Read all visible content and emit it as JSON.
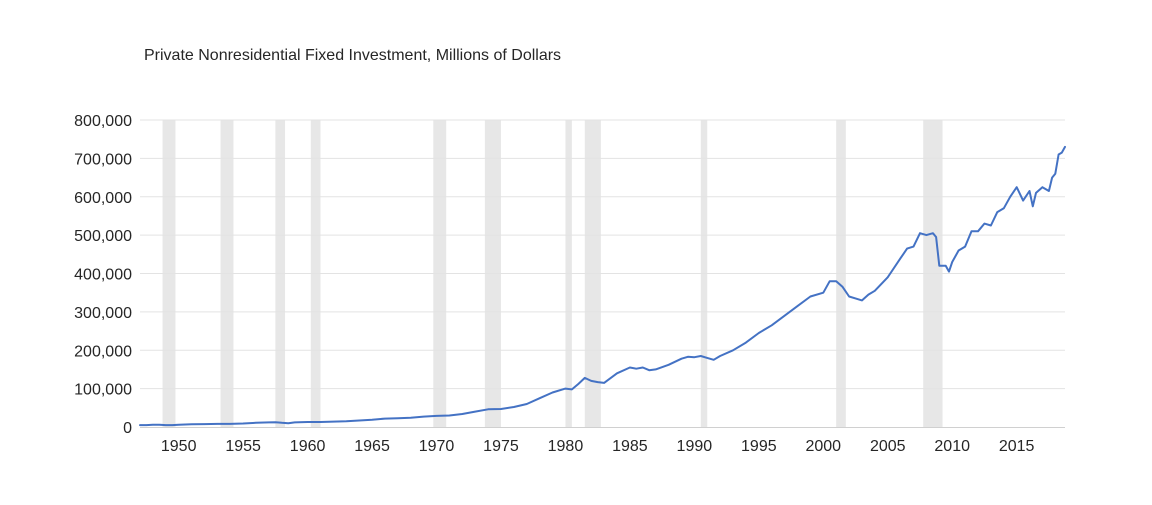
{
  "chart_data": {
    "type": "line",
    "title": "Private Nonresidential Fixed Investment, Millions of Dollars",
    "xlabel": "",
    "ylabel": "",
    "xlim": [
      1947,
      2018.75
    ],
    "ylim": [
      0,
      800000
    ],
    "y_ticks": [
      0,
      100000,
      200000,
      300000,
      400000,
      500000,
      600000,
      700000,
      800000
    ],
    "y_tick_labels": [
      "0",
      "100,000",
      "200,000",
      "300,000",
      "400,000",
      "500,000",
      "600,000",
      "700,000",
      "800,000"
    ],
    "x_ticks": [
      1950,
      1955,
      1960,
      1965,
      1970,
      1975,
      1980,
      1985,
      1990,
      1995,
      2000,
      2005,
      2010,
      2015
    ],
    "x_tick_labels": [
      "1950",
      "1955",
      "1960",
      "1965",
      "1970",
      "1975",
      "1980",
      "1985",
      "1990",
      "1995",
      "2000",
      "2005",
      "2010",
      "2015"
    ],
    "grid": true,
    "series_color": "#4472c4",
    "recession_color": "#e7e7e7",
    "recessions": [
      [
        1948.75,
        1949.75
      ],
      [
        1953.25,
        1954.25
      ],
      [
        1957.5,
        1958.25
      ],
      [
        1960.25,
        1961.0
      ],
      [
        1969.75,
        1970.75
      ],
      [
        1973.75,
        1975.0
      ],
      [
        1980.0,
        1980.5
      ],
      [
        1981.5,
        1982.75
      ],
      [
        1990.5,
        1991.0
      ],
      [
        2001.0,
        2001.75
      ],
      [
        2007.75,
        2009.25
      ]
    ],
    "x": [
      1947.0,
      1947.5,
      1948.0,
      1948.5,
      1949.0,
      1949.5,
      1950.0,
      1951.0,
      1952.0,
      1953.0,
      1954.0,
      1955.0,
      1956.0,
      1957.0,
      1957.5,
      1958.0,
      1958.5,
      1959.0,
      1960.0,
      1961.0,
      1962.0,
      1963.0,
      1964.0,
      1965.0,
      1966.0,
      1967.0,
      1968.0,
      1969.0,
      1970.0,
      1971.0,
      1972.0,
      1973.0,
      1974.0,
      1975.0,
      1976.0,
      1977.0,
      1978.0,
      1979.0,
      1980.0,
      1980.5,
      1981.0,
      1981.5,
      1982.0,
      1982.5,
      1983.0,
      1984.0,
      1985.0,
      1985.5,
      1986.0,
      1986.5,
      1987.0,
      1988.0,
      1989.0,
      1989.5,
      1990.0,
      1990.5,
      1991.0,
      1991.5,
      1992.0,
      1993.0,
      1994.0,
      1995.0,
      1996.0,
      1997.0,
      1998.0,
      1999.0,
      2000.0,
      2000.5,
      2001.0,
      2001.5,
      2002.0,
      2002.5,
      2003.0,
      2003.5,
      2004.0,
      2005.0,
      2006.0,
      2006.5,
      2007.0,
      2007.5,
      2008.0,
      2008.5,
      2008.75,
      2009.0,
      2009.5,
      2009.75,
      2010.0,
      2010.5,
      2011.0,
      2011.5,
      2012.0,
      2012.5,
      2013.0,
      2013.5,
      2014.0,
      2014.5,
      2015.0,
      2015.5,
      2016.0,
      2016.25,
      2016.5,
      2017.0,
      2017.5,
      2017.75,
      2018.0,
      2018.25,
      2018.5,
      2018.75
    ],
    "values": [
      5000,
      5000,
      6000,
      6000,
      5000,
      5000,
      6000,
      7000,
      7500,
      8000,
      8000,
      9000,
      11000,
      12000,
      12500,
      11000,
      10000,
      12000,
      13000,
      13000,
      14000,
      15000,
      17000,
      19000,
      22000,
      23000,
      24000,
      27000,
      29000,
      30000,
      34000,
      40000,
      46000,
      47000,
      52000,
      60000,
      75000,
      90000,
      100000,
      98000,
      112000,
      128000,
      120000,
      117000,
      115000,
      140000,
      155000,
      152000,
      155000,
      148000,
      150000,
      162000,
      178000,
      183000,
      182000,
      185000,
      180000,
      175000,
      185000,
      200000,
      220000,
      245000,
      265000,
      290000,
      315000,
      340000,
      350000,
      380000,
      380000,
      365000,
      340000,
      335000,
      330000,
      345000,
      355000,
      390000,
      440000,
      465000,
      470000,
      505000,
      500000,
      505000,
      495000,
      420000,
      420000,
      405000,
      430000,
      460000,
      470000,
      510000,
      510000,
      530000,
      525000,
      560000,
      570000,
      600000,
      625000,
      590000,
      615000,
      575000,
      610000,
      625000,
      615000,
      650000,
      660000,
      710000,
      715000,
      730000
    ]
  }
}
